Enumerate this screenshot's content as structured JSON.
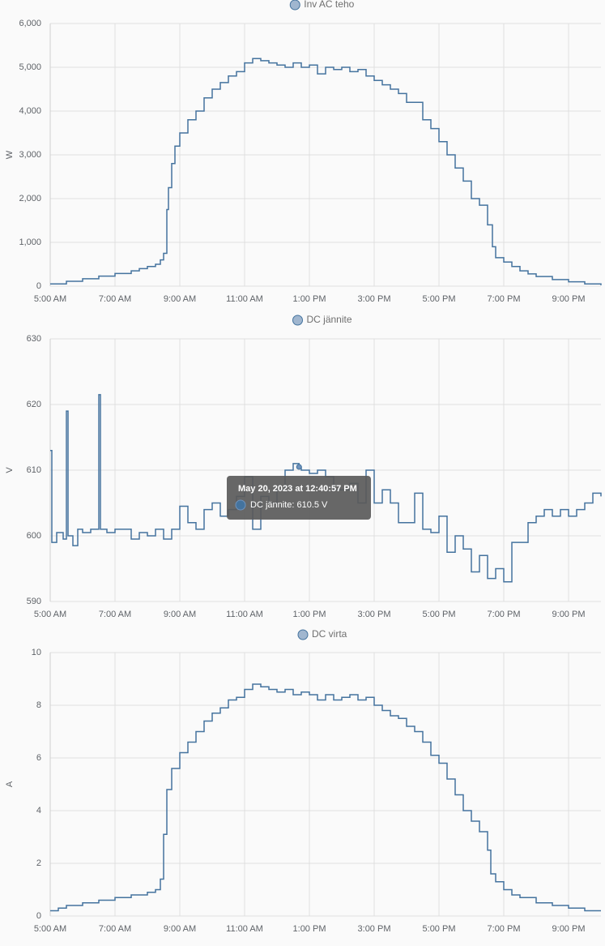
{
  "chart_data": [
    {
      "type": "line",
      "step": true,
      "grid": true,
      "ylabel": "W",
      "xlim": [
        5,
        22
      ],
      "xticks": [
        {
          "value": 5,
          "label": "5:00 AM"
        },
        {
          "value": 7,
          "label": "7:00 AM"
        },
        {
          "value": 9,
          "label": "9:00 AM"
        },
        {
          "value": 11,
          "label": "11:00 AM"
        },
        {
          "value": 13,
          "label": "1:00 PM"
        },
        {
          "value": 15,
          "label": "3:00 PM"
        },
        {
          "value": 17,
          "label": "5:00 PM"
        },
        {
          "value": 19,
          "label": "7:00 PM"
        },
        {
          "value": 21,
          "label": "9:00 PM"
        }
      ],
      "ylim": [
        0,
        6000
      ],
      "yticks": [
        0,
        {
          "value": 1000,
          "label": "1,000"
        },
        {
          "value": 2000,
          "label": "2,000"
        },
        {
          "value": 3000,
          "label": "3,000"
        },
        {
          "value": 4000,
          "label": "4,000"
        },
        {
          "value": 5000,
          "label": "5,000"
        },
        {
          "value": 6000,
          "label": "6,000"
        }
      ],
      "x": [
        5.0,
        5.5,
        6.0,
        6.5,
        7.0,
        7.5,
        7.75,
        8.0,
        8.25,
        8.4,
        8.5,
        8.6,
        8.65,
        8.75,
        8.85,
        9.0,
        9.25,
        9.5,
        9.75,
        10.0,
        10.25,
        10.5,
        10.75,
        11.0,
        11.25,
        11.5,
        11.75,
        12.0,
        12.25,
        12.5,
        12.75,
        13.0,
        13.25,
        13.5,
        13.75,
        14.0,
        14.25,
        14.5,
        14.75,
        15.0,
        15.25,
        15.5,
        15.75,
        16.0,
        16.5,
        16.75,
        17.0,
        17.25,
        17.5,
        17.75,
        18.0,
        18.25,
        18.5,
        18.65,
        18.75,
        19.0,
        19.25,
        19.5,
        19.75,
        20.0,
        20.5,
        21.0,
        21.5,
        22.0
      ],
      "series": [
        {
          "name": "Inv AC teho",
          "color": "#44739e",
          "values": [
            50,
            110,
            170,
            230,
            290,
            350,
            400,
            450,
            500,
            600,
            750,
            1750,
            2250,
            2800,
            3200,
            3500,
            3800,
            4000,
            4300,
            4500,
            4650,
            4800,
            4900,
            5100,
            5200,
            5150,
            5100,
            5050,
            5000,
            5100,
            5000,
            5050,
            4850,
            5000,
            4950,
            5000,
            4900,
            4950,
            4800,
            4700,
            4600,
            4500,
            4400,
            4200,
            3800,
            3600,
            3300,
            3000,
            2700,
            2400,
            2000,
            1850,
            1400,
            900,
            650,
            550,
            450,
            350,
            280,
            220,
            150,
            100,
            50,
            20
          ]
        }
      ]
    },
    {
      "type": "line",
      "step": true,
      "grid": true,
      "ylabel": "V",
      "xlim": [
        5,
        22
      ],
      "xticks": [
        {
          "value": 5,
          "label": "5:00 AM"
        },
        {
          "value": 7,
          "label": "7:00 AM"
        },
        {
          "value": 9,
          "label": "9:00 AM"
        },
        {
          "value": 11,
          "label": "11:00 AM"
        },
        {
          "value": 13,
          "label": "1:00 PM"
        },
        {
          "value": 15,
          "label": "3:00 PM"
        },
        {
          "value": 17,
          "label": "5:00 PM"
        },
        {
          "value": 19,
          "label": "7:00 PM"
        },
        {
          "value": 21,
          "label": "9:00 PM"
        }
      ],
      "ylim": [
        590,
        630
      ],
      "yticks": [
        590,
        600,
        610,
        620,
        630
      ],
      "x": [
        5.0,
        5.05,
        5.2,
        5.4,
        5.5,
        5.55,
        5.7,
        5.85,
        6.0,
        6.25,
        6.45,
        6.5,
        6.55,
        6.75,
        7.0,
        7.25,
        7.5,
        7.75,
        8.0,
        8.25,
        8.5,
        8.75,
        9.0,
        9.25,
        9.5,
        9.75,
        10.0,
        10.25,
        10.5,
        10.75,
        11.0,
        11.25,
        11.5,
        11.75,
        12.0,
        12.25,
        12.5,
        12.68,
        12.75,
        13.0,
        13.25,
        13.5,
        13.75,
        14.0,
        14.25,
        14.5,
        14.75,
        15.0,
        15.25,
        15.5,
        15.75,
        16.0,
        16.25,
        16.5,
        16.75,
        17.0,
        17.25,
        17.5,
        17.75,
        18.0,
        18.25,
        18.5,
        18.75,
        19.0,
        19.25,
        19.5,
        19.75,
        20.0,
        20.25,
        20.5,
        20.75,
        21.0,
        21.25,
        21.5,
        21.75,
        22.0
      ],
      "series": [
        {
          "name": "DC jännite",
          "color": "#44739e",
          "values": [
            613,
            599,
            600.5,
            599.5,
            619,
            600,
            598.5,
            601,
            600.5,
            601,
            601,
            621.5,
            601,
            600.5,
            601,
            601,
            599.5,
            600.5,
            600,
            601,
            599.5,
            601,
            604.5,
            602,
            601,
            604,
            605,
            603,
            604,
            606,
            609,
            601,
            606,
            605,
            607,
            610,
            611,
            610.5,
            610,
            609.5,
            610,
            609,
            607,
            607,
            608,
            605,
            610,
            605,
            607,
            605,
            602,
            602,
            606.5,
            601,
            600.5,
            603,
            597.5,
            600,
            598,
            594.5,
            597,
            593.5,
            595,
            593,
            599,
            599,
            602,
            603,
            604,
            603,
            604,
            603,
            604,
            605,
            606.5,
            606
          ]
        }
      ],
      "tooltip": {
        "index": 37,
        "title": "May 20, 2023 at 12:40:57 PM",
        "label": "DC jännite: 610.5 V"
      }
    },
    {
      "type": "line",
      "step": true,
      "grid": true,
      "ylabel": "A",
      "xlim": [
        5,
        22
      ],
      "xticks": [
        {
          "value": 5,
          "label": "5:00 AM"
        },
        {
          "value": 7,
          "label": "7:00 AM"
        },
        {
          "value": 9,
          "label": "9:00 AM"
        },
        {
          "value": 11,
          "label": "11:00 AM"
        },
        {
          "value": 13,
          "label": "1:00 PM"
        },
        {
          "value": 15,
          "label": "3:00 PM"
        },
        {
          "value": 17,
          "label": "5:00 PM"
        },
        {
          "value": 19,
          "label": "7:00 PM"
        },
        {
          "value": 21,
          "label": "9:00 PM"
        }
      ],
      "ylim": [
        0,
        10
      ],
      "yticks": [
        0,
        2,
        4,
        6,
        8,
        10
      ],
      "x": [
        5.0,
        5.25,
        5.5,
        6.0,
        6.5,
        7.0,
        7.5,
        8.0,
        8.25,
        8.4,
        8.5,
        8.6,
        8.75,
        9.0,
        9.25,
        9.5,
        9.75,
        10.0,
        10.25,
        10.5,
        10.75,
        11.0,
        11.25,
        11.5,
        11.75,
        12.0,
        12.25,
        12.5,
        12.75,
        13.0,
        13.25,
        13.5,
        13.75,
        14.0,
        14.25,
        14.5,
        14.75,
        15.0,
        15.25,
        15.5,
        15.75,
        16.0,
        16.25,
        16.5,
        16.75,
        17.0,
        17.25,
        17.5,
        17.75,
        18.0,
        18.25,
        18.5,
        18.6,
        18.75,
        19.0,
        19.25,
        19.5,
        20.0,
        20.5,
        21.0,
        21.5,
        22.0
      ],
      "series": [
        {
          "name": "DC virta",
          "color": "#44739e",
          "values": [
            0.2,
            0.3,
            0.4,
            0.5,
            0.6,
            0.7,
            0.8,
            0.9,
            1.0,
            1.4,
            3.1,
            4.8,
            5.6,
            6.2,
            6.6,
            7.0,
            7.4,
            7.7,
            7.9,
            8.2,
            8.3,
            8.6,
            8.8,
            8.7,
            8.6,
            8.5,
            8.6,
            8.4,
            8.5,
            8.4,
            8.2,
            8.4,
            8.2,
            8.3,
            8.4,
            8.2,
            8.3,
            8.0,
            7.8,
            7.6,
            7.5,
            7.2,
            7.0,
            6.6,
            6.1,
            5.8,
            5.2,
            4.6,
            4.0,
            3.6,
            3.2,
            2.5,
            1.6,
            1.3,
            1.0,
            0.8,
            0.7,
            0.5,
            0.4,
            0.3,
            0.2,
            0.2
          ]
        }
      ]
    }
  ]
}
